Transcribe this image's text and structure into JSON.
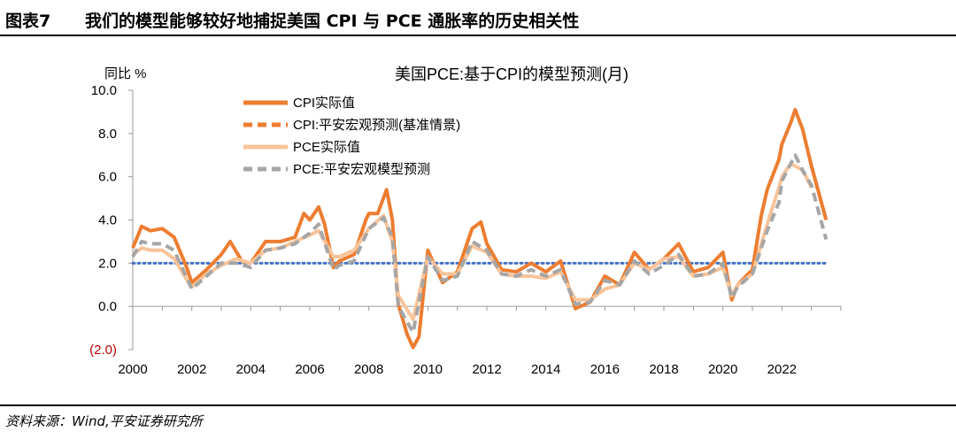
{
  "header": {
    "figure_number": "图表7",
    "figure_title": "我们的模型能够较好地捕捉美国 CPI 与 PCE 通胀率的历史相关性"
  },
  "source": "资料来源：Wind,平安证券研究所",
  "colors": {
    "cpi": "#ed7d31",
    "pce": "#f8c49a",
    "pce_model": "#a6a6a6",
    "reference": "#4472c4",
    "negative_label": "#c00000",
    "axis": "#999999"
  },
  "chart_data": {
    "type": "line",
    "title": "美国PCE:基于CPI的模型预测(月)",
    "ylabel": "同比 %",
    "xlabel": "",
    "xlim": [
      2000,
      2024
    ],
    "ylim": [
      -2,
      10
    ],
    "y_ticks": [
      {
        "value": -2,
        "label": "(2.0)"
      },
      {
        "value": 0,
        "label": "0.0"
      },
      {
        "value": 2,
        "label": "2.0"
      },
      {
        "value": 4,
        "label": "4.0"
      },
      {
        "value": 6,
        "label": "6.0"
      },
      {
        "value": 8,
        "label": "8.0"
      },
      {
        "value": 10,
        "label": "10.0"
      }
    ],
    "x_ticks": [
      "2000",
      "2002",
      "2004",
      "2006",
      "2008",
      "2010",
      "2012",
      "2014",
      "2016",
      "2018",
      "2020",
      "2022"
    ],
    "grid": false,
    "legend_position": "top-left",
    "reference_line": {
      "value": 2.0,
      "style": "dotted"
    },
    "series": [
      {
        "name": "CPI实际值",
        "style": "solid",
        "x": [
          2000,
          2000.3,
          2000.6,
          2001,
          2001.4,
          2001.8,
          2002,
          2002.5,
          2003,
          2003.3,
          2003.7,
          2004,
          2004.5,
          2005,
          2005.5,
          2005.8,
          2006,
          2006.3,
          2006.5,
          2006.8,
          2007,
          2007.5,
          2007.9,
          2008,
          2008.3,
          2008.6,
          2008.8,
          2009,
          2009.3,
          2009.5,
          2009.7,
          2010,
          2010.5,
          2011,
          2011.5,
          2011.8,
          2012,
          2012.5,
          2013,
          2013.5,
          2014,
          2014.5,
          2015,
          2015.5,
          2016,
          2016.5,
          2017,
          2017.5,
          2018,
          2018.5,
          2019,
          2019.5,
          2020,
          2020.3,
          2020.5,
          2021,
          2021.3,
          2021.5,
          2021.9,
          2022,
          2022.3,
          2022.45,
          2022.7,
          2023,
          2023.5
        ],
        "y": [
          2.7,
          3.7,
          3.5,
          3.6,
          3.2,
          1.9,
          1.1,
          1.7,
          2.4,
          3.0,
          2.1,
          2.0,
          3.0,
          3.0,
          3.2,
          4.3,
          4.0,
          4.6,
          3.8,
          1.8,
          2.1,
          2.4,
          4.0,
          4.3,
          4.3,
          5.4,
          4.0,
          0.1,
          -1.3,
          -1.9,
          -1.4,
          2.6,
          1.1,
          1.6,
          3.6,
          3.9,
          2.9,
          1.7,
          1.6,
          2.0,
          1.6,
          2.1,
          -0.1,
          0.2,
          1.4,
          1.0,
          2.5,
          1.7,
          2.2,
          2.9,
          1.6,
          1.8,
          2.5,
          0.3,
          1.0,
          1.7,
          4.2,
          5.4,
          6.8,
          7.5,
          8.5,
          9.1,
          8.2,
          6.5,
          4.0
        ]
      },
      {
        "name": "CPI:平安宏观预测(基准情景)",
        "style": "dashed",
        "x": [
          2023,
          2023.2,
          2023.4,
          2023.5
        ],
        "y": [
          6.5,
          5.5,
          4.5,
          4.0
        ]
      },
      {
        "name": "PCE实际值",
        "style": "solid",
        "x": [
          2000,
          2000.3,
          2000.6,
          2001,
          2001.4,
          2001.8,
          2002,
          2002.5,
          2003,
          2003.5,
          2004,
          2004.5,
          2005,
          2005.5,
          2006,
          2006.3,
          2006.8,
          2007,
          2007.5,
          2008,
          2008.5,
          2008.8,
          2009,
          2009.5,
          2010,
          2010.5,
          2011,
          2011.5,
          2012,
          2012.5,
          2013,
          2013.5,
          2014,
          2014.5,
          2015,
          2015.5,
          2016,
          2016.5,
          2017,
          2017.5,
          2018,
          2018.5,
          2019,
          2019.5,
          2020,
          2020.3,
          2020.5,
          2021,
          2021.5,
          2021.9,
          2022,
          2022.3,
          2022.7,
          2023
        ],
        "y": [
          2.4,
          2.7,
          2.6,
          2.6,
          2.2,
          1.3,
          0.9,
          1.5,
          1.9,
          2.2,
          2.0,
          2.6,
          2.7,
          3.0,
          3.3,
          3.5,
          2.3,
          2.3,
          2.6,
          3.6,
          4.2,
          3.0,
          0.5,
          -0.6,
          2.3,
          1.5,
          1.5,
          2.8,
          2.5,
          1.5,
          1.4,
          1.4,
          1.3,
          1.6,
          0.3,
          0.3,
          0.8,
          1.0,
          2.0,
          1.7,
          2.2,
          2.3,
          1.4,
          1.5,
          1.8,
          0.5,
          1.0,
          1.5,
          3.8,
          5.5,
          6.0,
          6.6,
          6.3,
          5.5
        ]
      },
      {
        "name": "PCE:平安宏观模型预测",
        "style": "dashed",
        "x": [
          2000,
          2000.3,
          2000.6,
          2001,
          2001.4,
          2001.8,
          2002,
          2002.5,
          2003,
          2003.5,
          2004,
          2004.5,
          2005,
          2005.5,
          2006,
          2006.3,
          2006.8,
          2007,
          2007.5,
          2008,
          2008.5,
          2008.8,
          2009,
          2009.5,
          2010,
          2010.5,
          2011,
          2011.5,
          2012,
          2012.5,
          2013,
          2013.5,
          2014,
          2014.5,
          2015,
          2015.5,
          2016,
          2016.5,
          2017,
          2017.5,
          2018,
          2018.5,
          2019,
          2019.5,
          2020,
          2020.3,
          2020.5,
          2021,
          2021.5,
          2021.9,
          2022,
          2022.3,
          2022.45,
          2022.7,
          2023,
          2023.5
        ],
        "y": [
          2.3,
          3.0,
          2.9,
          2.9,
          2.6,
          1.4,
          0.8,
          1.4,
          2.0,
          2.0,
          1.8,
          2.6,
          2.7,
          2.9,
          3.4,
          3.8,
          1.7,
          1.9,
          2.1,
          3.6,
          4.1,
          3.2,
          0.0,
          -1.2,
          2.3,
          1.2,
          1.4,
          3.0,
          2.6,
          1.5,
          1.4,
          1.7,
          1.4,
          1.7,
          0.1,
          0.2,
          1.2,
          1.0,
          2.1,
          1.5,
          1.9,
          2.4,
          1.4,
          1.5,
          2.0,
          0.4,
          0.9,
          1.5,
          3.5,
          4.8,
          5.8,
          6.6,
          7.0,
          6.3,
          5.6,
          3.1
        ]
      }
    ]
  }
}
